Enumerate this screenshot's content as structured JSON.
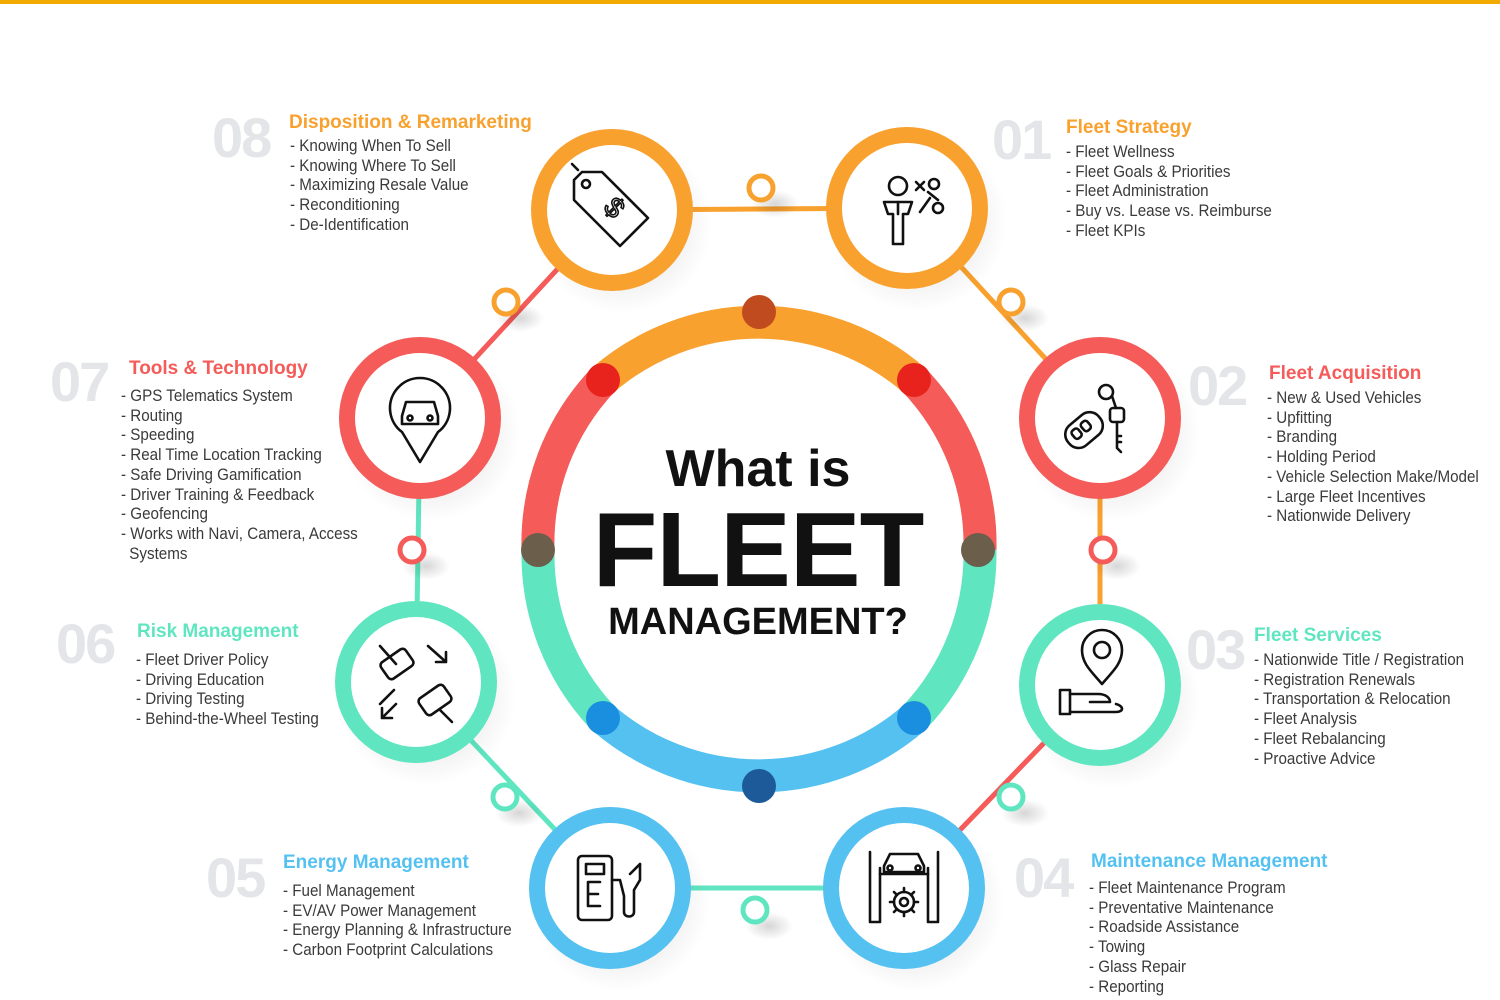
{
  "colors": {
    "orange": "#f9a12e",
    "red": "#f45b59",
    "teal": "#5fe6c1",
    "blue": "#54c1f1",
    "top_bar": "#f2a900",
    "number_gray": "#e3e5e8"
  },
  "center": {
    "line1": "What is",
    "line2": "FLEET",
    "line3": "MANAGEMENT?"
  },
  "sections": [
    {
      "number": "01",
      "title": "Fleet Strategy",
      "color": "#f9a12e",
      "icon": "strategy-person-icon",
      "items": [
        "- Fleet Wellness",
        "- Fleet Goals & Priorities",
        "- Fleet Administration",
        "- Buy vs. Lease vs. Reimburse",
        "- Fleet KPIs"
      ]
    },
    {
      "number": "02",
      "title": "Fleet Acquisition",
      "color": "#f45b59",
      "icon": "car-keys-icon",
      "items": [
        "- New & Used Vehicles",
        "- Upfitting",
        "- Branding",
        "- Holding Period",
        "- Vehicle Selection Make/Model",
        "- Large Fleet Incentives",
        "- Nationwide Delivery"
      ]
    },
    {
      "number": "03",
      "title": "Fleet Services",
      "color": "#5fe6c1",
      "icon": "hand-location-pin-icon",
      "items": [
        "- Nationwide Title / Registration",
        "- Registration Renewals",
        "- Transportation & Relocation",
        "- Fleet Analysis",
        "- Fleet Rebalancing",
        "- Proactive Advice"
      ]
    },
    {
      "number": "04",
      "title": "Maintenance Management",
      "color": "#54c1f1",
      "icon": "car-lift-gear-icon",
      "items": [
        "- Fleet Maintenance Program",
        "- Preventative Maintenance",
        "- Roadside Assistance",
        "- Towing",
        "- Glass Repair",
        "- Reporting"
      ]
    },
    {
      "number": "05",
      "title": "Energy Management",
      "color": "#54c1f1",
      "icon": "fuel-pump-icon",
      "items": [
        "- Fuel Management",
        "- EV/AV Power Management",
        "- Energy Planning & Infrastructure",
        "- Carbon Footprint Calculations"
      ]
    },
    {
      "number": "06",
      "title": "Risk Management",
      "color": "#5fe6c1",
      "icon": "car-collision-icon",
      "items": [
        "- Fleet Driver Policy",
        "- Driving Education",
        "- Driving Testing",
        "- Behind-the-Wheel Testing"
      ]
    },
    {
      "number": "07",
      "title": "Tools & Technology",
      "color": "#f45b59",
      "icon": "car-location-pin-icon",
      "items": [
        "- GPS Telematics System",
        "- Routing",
        "- Speeding",
        "- Real Time Location Tracking",
        "- Safe Driving Gamification",
        "- Driver Training & Feedback",
        "- Geofencing",
        "- Works with Navi, Camera, Access",
        "  Systems"
      ]
    },
    {
      "number": "08",
      "title": "Disposition & Remarketing",
      "color": "#f9a12e",
      "icon": "price-tag-icon",
      "items": [
        "- Knowing When To Sell",
        "- Knowing Where To Sell",
        "- Maximizing Resale Value",
        "- Reconditioning",
        "- De-Identification"
      ]
    }
  ]
}
